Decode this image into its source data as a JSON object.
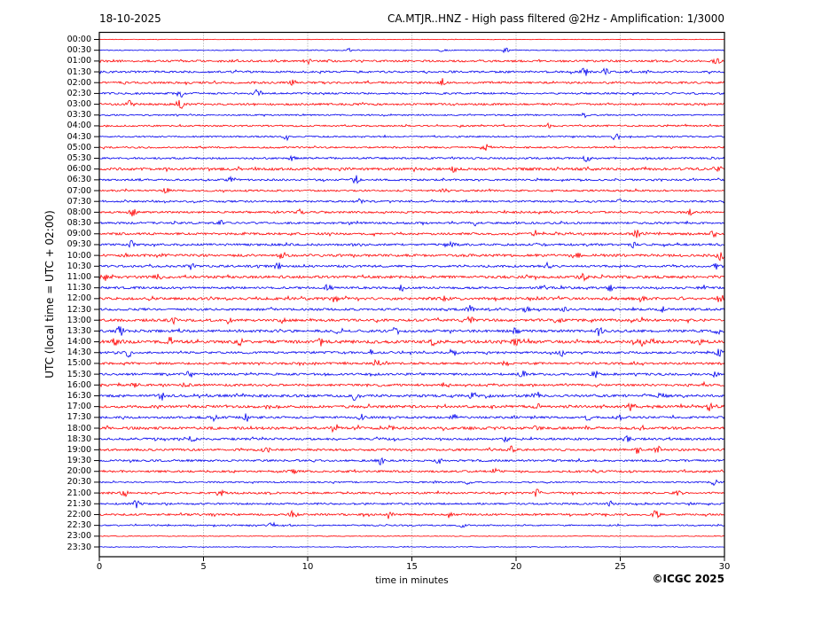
{
  "header": {
    "date": "18-10-2025",
    "title": "CA.MTJR..HNZ - High pass filtered @2Hz - Amplification: 1/3000"
  },
  "axes": {
    "y_label": "UTC (local time = UTC + 02:00)",
    "x_label": "time in minutes",
    "x_ticks": [
      0,
      5,
      10,
      15,
      20,
      25,
      30
    ],
    "x_range": [
      0,
      30
    ],
    "grid_minutes": [
      5,
      10,
      15,
      20,
      25
    ],
    "grid_style": "dotted"
  },
  "footer": {
    "credit": "©ICGC 2025"
  },
  "colors": {
    "trace_red": "#ff0000",
    "trace_blue": "#0000ee",
    "grid": "#888888",
    "frame": "#000000"
  },
  "chart_data": {
    "type": "seismogram-helicorder",
    "minutes_per_row": 30,
    "row_interval_minutes": 30,
    "rows": [
      {
        "time": "00:00",
        "color": "red",
        "noise": 0.3,
        "spikes": []
      },
      {
        "time": "00:30",
        "color": "blue",
        "noise": 0.5,
        "spikes": [
          {
            "m": 12.0,
            "a": 1.2
          },
          {
            "m": 16.5,
            "a": 1.2
          },
          {
            "m": 19.5,
            "a": 1.6
          }
        ]
      },
      {
        "time": "01:00",
        "color": "red",
        "noise": 1.1,
        "spikes": [
          {
            "m": 10.0,
            "a": 1.8
          },
          {
            "m": 29.6,
            "a": 2.0
          }
        ]
      },
      {
        "time": "01:30",
        "color": "blue",
        "noise": 1.1,
        "spikes": [
          {
            "m": 23.3,
            "a": 2.6
          },
          {
            "m": 24.3,
            "a": 2.0
          }
        ]
      },
      {
        "time": "02:00",
        "color": "red",
        "noise": 1.1,
        "spikes": [
          {
            "m": 9.3,
            "a": 2.0
          },
          {
            "m": 16.5,
            "a": 2.6
          }
        ]
      },
      {
        "time": "02:30",
        "color": "blue",
        "noise": 1.0,
        "spikes": [
          {
            "m": 3.9,
            "a": 1.6
          },
          {
            "m": 7.6,
            "a": 2.6
          }
        ]
      },
      {
        "time": "03:00",
        "color": "red",
        "noise": 1.1,
        "spikes": [
          {
            "m": 1.5,
            "a": 2.6
          },
          {
            "m": 3.9,
            "a": 3.0
          }
        ]
      },
      {
        "time": "03:30",
        "color": "blue",
        "noise": 0.8,
        "spikes": [
          {
            "m": 23.3,
            "a": 1.6
          }
        ]
      },
      {
        "time": "04:00",
        "color": "red",
        "noise": 0.9,
        "spikes": [
          {
            "m": 21.6,
            "a": 1.4
          }
        ]
      },
      {
        "time": "04:30",
        "color": "blue",
        "noise": 0.8,
        "spikes": [
          {
            "m": 9.0,
            "a": 2.4
          },
          {
            "m": 24.8,
            "a": 3.0
          }
        ]
      },
      {
        "time": "05:00",
        "color": "red",
        "noise": 0.9,
        "spikes": [
          {
            "m": 18.6,
            "a": 2.6
          }
        ]
      },
      {
        "time": "05:30",
        "color": "blue",
        "noise": 1.0,
        "spikes": [
          {
            "m": 9.2,
            "a": 2.0
          },
          {
            "m": 23.4,
            "a": 2.2
          }
        ]
      },
      {
        "time": "06:00",
        "color": "red",
        "noise": 1.4,
        "spikes": [
          {
            "m": 17.0,
            "a": 1.6
          },
          {
            "m": 29.7,
            "a": 2.2
          }
        ]
      },
      {
        "time": "06:30",
        "color": "blue",
        "noise": 1.0,
        "spikes": [
          {
            "m": 6.3,
            "a": 1.4
          },
          {
            "m": 12.3,
            "a": 2.6
          }
        ]
      },
      {
        "time": "07:00",
        "color": "red",
        "noise": 1.0,
        "spikes": [
          {
            "m": 3.2,
            "a": 1.8
          },
          {
            "m": 16.6,
            "a": 1.4
          }
        ]
      },
      {
        "time": "07:30",
        "color": "blue",
        "noise": 1.0,
        "spikes": [
          {
            "m": 12.5,
            "a": 1.8
          },
          {
            "m": 25.0,
            "a": 1.4
          }
        ]
      },
      {
        "time": "08:00",
        "color": "red",
        "noise": 1.1,
        "spikes": [
          {
            "m": 1.6,
            "a": 2.6
          },
          {
            "m": 9.6,
            "a": 2.0
          },
          {
            "m": 28.3,
            "a": 1.8
          }
        ]
      },
      {
        "time": "08:30",
        "color": "blue",
        "noise": 1.1,
        "spikes": [
          {
            "m": 5.8,
            "a": 1.4
          },
          {
            "m": 18.0,
            "a": 1.4
          }
        ]
      },
      {
        "time": "09:00",
        "color": "red",
        "noise": 1.2,
        "spikes": [
          {
            "m": 20.9,
            "a": 2.0
          },
          {
            "m": 25.8,
            "a": 2.2
          },
          {
            "m": 29.5,
            "a": 1.8
          }
        ]
      },
      {
        "time": "09:30",
        "color": "blue",
        "noise": 1.2,
        "spikes": [
          {
            "m": 1.5,
            "a": 2.2
          },
          {
            "m": 16.9,
            "a": 1.8
          },
          {
            "m": 25.6,
            "a": 1.8
          }
        ]
      },
      {
        "time": "10:00",
        "color": "red",
        "noise": 1.4,
        "spikes": [
          {
            "m": 8.8,
            "a": 1.8
          },
          {
            "m": 23.0,
            "a": 1.8
          },
          {
            "m": 29.8,
            "a": 2.4
          }
        ]
      },
      {
        "time": "10:30",
        "color": "blue",
        "noise": 1.2,
        "spikes": [
          {
            "m": 4.4,
            "a": 2.0
          },
          {
            "m": 8.6,
            "a": 2.6
          },
          {
            "m": 21.5,
            "a": 2.0
          },
          {
            "m": 29.6,
            "a": 1.8
          }
        ]
      },
      {
        "time": "11:00",
        "color": "red",
        "noise": 1.4,
        "spikes": [
          {
            "m": 0.2,
            "a": 2.6
          },
          {
            "m": 2.8,
            "a": 1.8
          },
          {
            "m": 23.2,
            "a": 2.2
          }
        ]
      },
      {
        "time": "11:30",
        "color": "blue",
        "noise": 1.2,
        "spikes": [
          {
            "m": 11.0,
            "a": 1.8
          },
          {
            "m": 14.5,
            "a": 1.8
          },
          {
            "m": 21.3,
            "a": 1.8
          },
          {
            "m": 24.5,
            "a": 1.8
          },
          {
            "m": 29.0,
            "a": 1.8
          }
        ]
      },
      {
        "time": "12:00",
        "color": "red",
        "noise": 1.4,
        "spikes": [
          {
            "m": 11.3,
            "a": 2.2
          },
          {
            "m": 16.6,
            "a": 1.8
          },
          {
            "m": 26.0,
            "a": 1.8
          },
          {
            "m": 29.8,
            "a": 2.2
          }
        ]
      },
      {
        "time": "12:30",
        "color": "blue",
        "noise": 1.2,
        "spikes": [
          {
            "m": 17.8,
            "a": 2.2
          },
          {
            "m": 20.5,
            "a": 1.8
          },
          {
            "m": 22.3,
            "a": 1.8
          },
          {
            "m": 27.0,
            "a": 2.2
          }
        ]
      },
      {
        "time": "13:00",
        "color": "red",
        "noise": 1.4,
        "spikes": [
          {
            "m": 3.5,
            "a": 2.2
          },
          {
            "m": 6.2,
            "a": 1.8
          },
          {
            "m": 8.8,
            "a": 1.8
          },
          {
            "m": 17.8,
            "a": 2.2
          },
          {
            "m": 22.0,
            "a": 1.8
          },
          {
            "m": 26.0,
            "a": 1.8
          }
        ]
      },
      {
        "time": "13:30",
        "color": "blue",
        "noise": 1.4,
        "spikes": [
          {
            "m": 1.0,
            "a": 3.0
          },
          {
            "m": 11.5,
            "a": 1.8
          },
          {
            "m": 14.2,
            "a": 1.8
          },
          {
            "m": 20.0,
            "a": 1.8
          },
          {
            "m": 24.0,
            "a": 1.8
          },
          {
            "m": 29.7,
            "a": 2.4
          }
        ]
      },
      {
        "time": "14:00",
        "color": "red",
        "noise": 1.7,
        "spikes": [
          {
            "m": 0.8,
            "a": 2.6
          },
          {
            "m": 3.4,
            "a": 2.6
          },
          {
            "m": 6.7,
            "a": 2.6
          },
          {
            "m": 10.6,
            "a": 2.2
          },
          {
            "m": 16.0,
            "a": 1.8
          },
          {
            "m": 20.0,
            "a": 2.2
          },
          {
            "m": 26.0,
            "a": 2.2
          },
          {
            "m": 28.8,
            "a": 1.8
          }
        ]
      },
      {
        "time": "14:30",
        "color": "blue",
        "noise": 1.2,
        "spikes": [
          {
            "m": 1.4,
            "a": 2.6
          },
          {
            "m": 13.0,
            "a": 1.8
          },
          {
            "m": 17.0,
            "a": 2.2
          },
          {
            "m": 22.2,
            "a": 1.8
          },
          {
            "m": 29.7,
            "a": 2.6
          }
        ]
      },
      {
        "time": "15:00",
        "color": "red",
        "noise": 1.2,
        "spikes": [
          {
            "m": 13.3,
            "a": 2.2
          },
          {
            "m": 19.5,
            "a": 1.8
          }
        ]
      },
      {
        "time": "15:30",
        "color": "blue",
        "noise": 1.2,
        "spikes": [
          {
            "m": 4.3,
            "a": 2.6
          },
          {
            "m": 20.3,
            "a": 2.2
          },
          {
            "m": 23.8,
            "a": 1.8
          },
          {
            "m": 29.5,
            "a": 2.2
          }
        ]
      },
      {
        "time": "16:00",
        "color": "red",
        "noise": 1.2,
        "spikes": [
          {
            "m": 1.7,
            "a": 2.2
          },
          {
            "m": 4.2,
            "a": 1.8
          },
          {
            "m": 16.6,
            "a": 2.2
          },
          {
            "m": 24.0,
            "a": 1.8
          },
          {
            "m": 29.0,
            "a": 1.8
          }
        ]
      },
      {
        "time": "16:30",
        "color": "blue",
        "noise": 1.4,
        "spikes": [
          {
            "m": 3.0,
            "a": 1.8
          },
          {
            "m": 12.3,
            "a": 3.0
          },
          {
            "m": 17.9,
            "a": 1.8
          },
          {
            "m": 21.0,
            "a": 2.2
          },
          {
            "m": 27.0,
            "a": 2.2
          }
        ]
      },
      {
        "time": "17:00",
        "color": "red",
        "noise": 1.4,
        "spikes": [
          {
            "m": 21.0,
            "a": 1.8
          },
          {
            "m": 25.5,
            "a": 2.2
          },
          {
            "m": 29.3,
            "a": 2.2
          }
        ]
      },
      {
        "time": "17:30",
        "color": "blue",
        "noise": 1.2,
        "spikes": [
          {
            "m": 5.5,
            "a": 1.8
          },
          {
            "m": 7.0,
            "a": 2.2
          },
          {
            "m": 12.6,
            "a": 1.8
          },
          {
            "m": 17.0,
            "a": 1.8
          },
          {
            "m": 23.5,
            "a": 1.8
          },
          {
            "m": 25.0,
            "a": 2.2
          }
        ]
      },
      {
        "time": "18:00",
        "color": "red",
        "noise": 1.4,
        "spikes": [
          {
            "m": 11.3,
            "a": 2.6
          },
          {
            "m": 12.3,
            "a": 2.2
          },
          {
            "m": 14.0,
            "a": 1.8
          },
          {
            "m": 21.0,
            "a": 1.8
          },
          {
            "m": 26.0,
            "a": 2.2
          }
        ]
      },
      {
        "time": "18:30",
        "color": "blue",
        "noise": 1.2,
        "spikes": [
          {
            "m": 4.5,
            "a": 1.8
          },
          {
            "m": 19.5,
            "a": 1.8
          },
          {
            "m": 25.3,
            "a": 1.8
          }
        ]
      },
      {
        "time": "19:00",
        "color": "red",
        "noise": 1.2,
        "spikes": [
          {
            "m": 8.0,
            "a": 1.8
          },
          {
            "m": 19.8,
            "a": 1.8
          },
          {
            "m": 25.8,
            "a": 2.2
          },
          {
            "m": 26.8,
            "a": 1.8
          }
        ]
      },
      {
        "time": "19:30",
        "color": "blue",
        "noise": 1.1,
        "spikes": [
          {
            "m": 13.5,
            "a": 2.2
          },
          {
            "m": 16.3,
            "a": 1.8
          }
        ]
      },
      {
        "time": "20:00",
        "color": "red",
        "noise": 1.1,
        "spikes": [
          {
            "m": 9.3,
            "a": 1.8
          },
          {
            "m": 19.0,
            "a": 1.8
          },
          {
            "m": 23.8,
            "a": 1.4
          }
        ]
      },
      {
        "time": "20:30",
        "color": "blue",
        "noise": 0.8,
        "spikes": [
          {
            "m": 17.7,
            "a": 2.6
          },
          {
            "m": 29.5,
            "a": 1.8
          }
        ]
      },
      {
        "time": "21:00",
        "color": "red",
        "noise": 1.1,
        "spikes": [
          {
            "m": 1.2,
            "a": 2.2
          },
          {
            "m": 5.8,
            "a": 3.0
          },
          {
            "m": 21.0,
            "a": 2.2
          },
          {
            "m": 27.8,
            "a": 1.8
          }
        ]
      },
      {
        "time": "21:30",
        "color": "blue",
        "noise": 1.0,
        "spikes": [
          {
            "m": 1.8,
            "a": 2.6
          },
          {
            "m": 24.5,
            "a": 1.4
          }
        ]
      },
      {
        "time": "22:00",
        "color": "red",
        "noise": 1.1,
        "spikes": [
          {
            "m": 9.3,
            "a": 3.0
          },
          {
            "m": 13.9,
            "a": 2.2
          },
          {
            "m": 16.8,
            "a": 1.8
          },
          {
            "m": 26.7,
            "a": 2.6
          }
        ]
      },
      {
        "time": "22:30",
        "color": "blue",
        "noise": 0.8,
        "spikes": [
          {
            "m": 8.3,
            "a": 1.8
          },
          {
            "m": 17.5,
            "a": 1.8
          }
        ]
      },
      {
        "time": "23:00",
        "color": "red",
        "noise": 0.4,
        "spikes": []
      },
      {
        "time": "23:30",
        "color": "blue",
        "noise": 0.4,
        "spikes": []
      }
    ]
  }
}
